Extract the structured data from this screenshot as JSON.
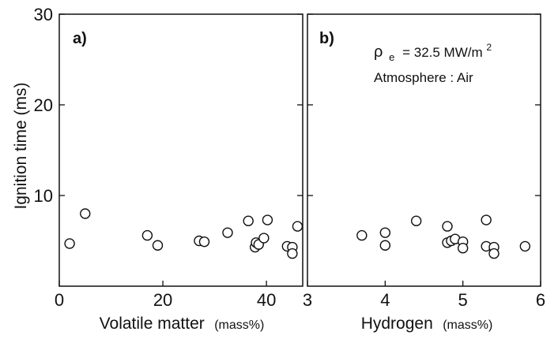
{
  "chart_data": [
    {
      "type": "scatter",
      "panel_label": "a)",
      "xlabel": "Volatile matter",
      "xunit": "(mass%)",
      "ylabel": "Ignition time (ms)",
      "xlim": [
        0,
        47
      ],
      "ylim": [
        0,
        30
      ],
      "xticks": [
        0,
        20,
        40
      ],
      "yticks": [
        10,
        20,
        30
      ],
      "grid": false,
      "points": [
        {
          "x": 2,
          "y": 4.7
        },
        {
          "x": 5,
          "y": 8.0
        },
        {
          "x": 17,
          "y": 5.6
        },
        {
          "x": 19,
          "y": 4.5
        },
        {
          "x": 27,
          "y": 5.0
        },
        {
          "x": 28,
          "y": 4.9
        },
        {
          "x": 32.5,
          "y": 5.9
        },
        {
          "x": 36.5,
          "y": 7.2
        },
        {
          "x": 37.8,
          "y": 4.3
        },
        {
          "x": 38,
          "y": 4.8
        },
        {
          "x": 38.5,
          "y": 4.6
        },
        {
          "x": 39.5,
          "y": 5.3
        },
        {
          "x": 40.2,
          "y": 7.3
        },
        {
          "x": 44,
          "y": 4.4
        },
        {
          "x": 45,
          "y": 4.3
        },
        {
          "x": 45,
          "y": 3.6
        },
        {
          "x": 46,
          "y": 6.6
        }
      ]
    },
    {
      "type": "scatter",
      "panel_label": "b)",
      "annotation_rho": "ρ",
      "annotation_sub": "e",
      "annotation_rest": "= 32.5 MW/m",
      "annotation_sup": "2",
      "annotation_atm": "Atmosphere :  Air",
      "xlabel": "Hydrogen",
      "xunit": "(mass%)",
      "xlim": [
        3,
        6
      ],
      "ylim": [
        0,
        30
      ],
      "xticks": [
        3,
        4,
        5,
        6
      ],
      "grid": false,
      "points": [
        {
          "x": 3.7,
          "y": 5.6
        },
        {
          "x": 4.0,
          "y": 5.9
        },
        {
          "x": 4.0,
          "y": 4.5
        },
        {
          "x": 4.4,
          "y": 7.2
        },
        {
          "x": 4.8,
          "y": 6.6
        },
        {
          "x": 4.8,
          "y": 4.8
        },
        {
          "x": 4.85,
          "y": 5.0
        },
        {
          "x": 4.9,
          "y": 5.2
        },
        {
          "x": 5.0,
          "y": 4.9
        },
        {
          "x": 5.0,
          "y": 4.2
        },
        {
          "x": 5.3,
          "y": 7.3
        },
        {
          "x": 5.3,
          "y": 4.4
        },
        {
          "x": 5.4,
          "y": 4.3
        },
        {
          "x": 5.4,
          "y": 3.6
        },
        {
          "x": 5.8,
          "y": 4.4
        }
      ]
    }
  ]
}
